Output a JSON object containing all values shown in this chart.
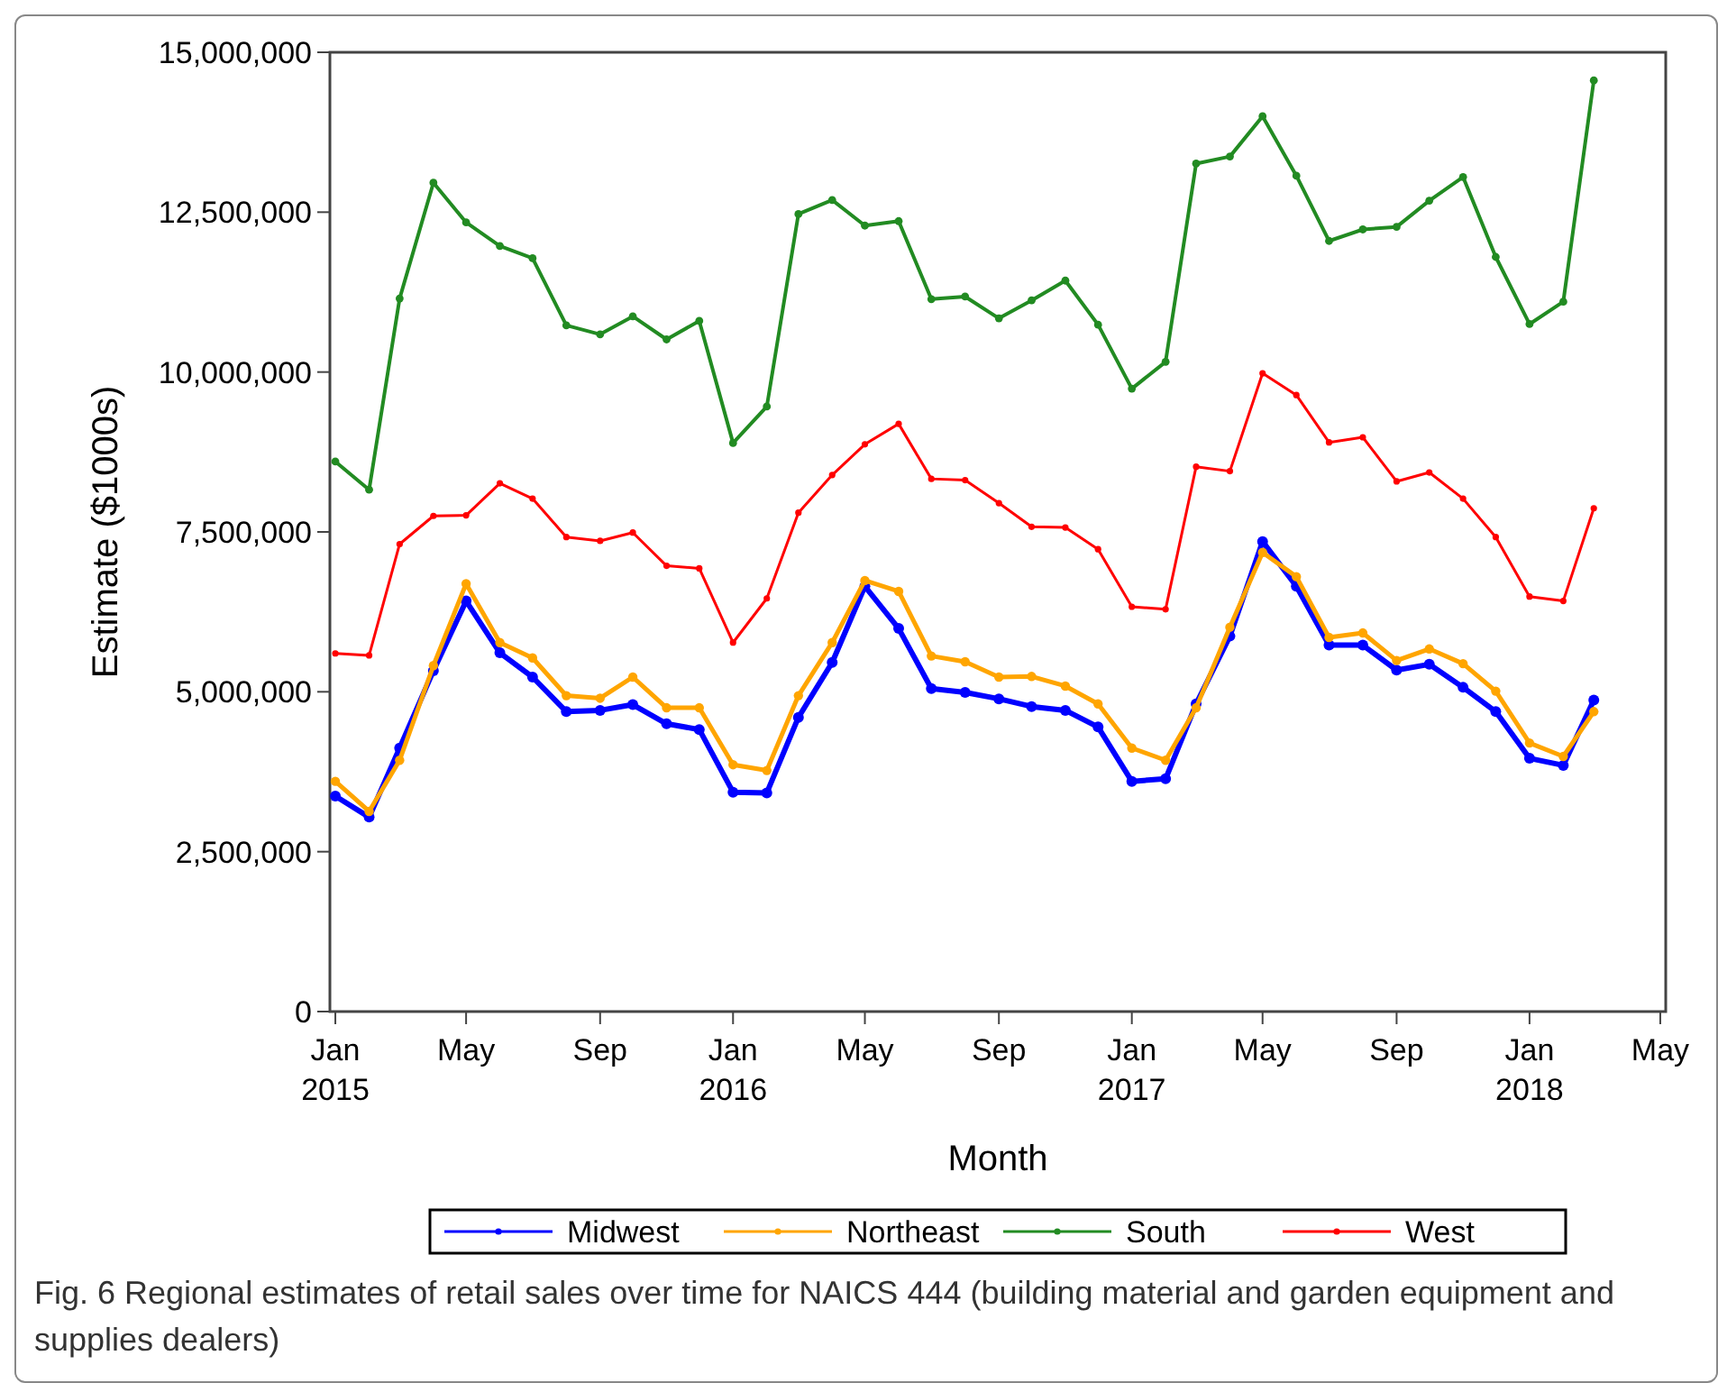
{
  "chart_data": {
    "type": "line",
    "xlabel": "Month",
    "ylabel": "Estimate ($1000s)",
    "x": [
      "2015-01",
      "2015-02",
      "2015-03",
      "2015-04",
      "2015-05",
      "2015-06",
      "2015-07",
      "2015-08",
      "2015-09",
      "2015-10",
      "2015-11",
      "2015-12",
      "2016-01",
      "2016-02",
      "2016-03",
      "2016-04",
      "2016-05",
      "2016-06",
      "2016-07",
      "2016-08",
      "2016-09",
      "2016-10",
      "2016-11",
      "2016-12",
      "2017-01",
      "2017-02",
      "2017-03",
      "2017-04",
      "2017-05",
      "2017-06",
      "2017-07",
      "2017-08",
      "2017-09",
      "2017-10",
      "2017-11",
      "2017-12",
      "2018-01",
      "2018-02",
      "2018-03"
    ],
    "series": [
      {
        "name": "Midwest",
        "color": "#0000ff",
        "values": [
          3370000,
          3040000,
          4120000,
          5330000,
          6420000,
          5610000,
          5230000,
          4690000,
          4710000,
          4800000,
          4500000,
          4410000,
          3430000,
          3420000,
          4600000,
          5460000,
          6650000,
          5990000,
          5050000,
          4990000,
          4890000,
          4770000,
          4710000,
          4450000,
          3600000,
          3640000,
          4810000,
          5870000,
          7350000,
          6650000,
          5730000,
          5730000,
          5340000,
          5430000,
          5070000,
          4690000,
          3960000,
          3850000,
          4870000
        ]
      },
      {
        "name": "Northeast",
        "color": "#ffa500",
        "values": [
          3600000,
          3130000,
          3930000,
          5410000,
          6690000,
          5770000,
          5530000,
          4940000,
          4900000,
          5230000,
          4750000,
          4750000,
          3860000,
          3770000,
          4940000,
          5770000,
          6740000,
          6570000,
          5560000,
          5470000,
          5230000,
          5240000,
          5090000,
          4810000,
          4120000,
          3930000,
          4750000,
          6010000,
          7180000,
          6800000,
          5850000,
          5920000,
          5490000,
          5670000,
          5440000,
          5010000,
          4200000,
          3990000,
          4690000
        ]
      },
      {
        "name": "South",
        "color": "#228b22",
        "values": [
          8600000,
          8160000,
          11150000,
          12960000,
          12340000,
          11970000,
          11780000,
          10730000,
          10590000,
          10870000,
          10510000,
          10800000,
          8890000,
          9460000,
          12470000,
          12690000,
          12290000,
          12360000,
          11140000,
          11180000,
          10840000,
          11120000,
          11430000,
          10740000,
          9740000,
          10160000,
          13260000,
          13370000,
          14000000,
          13070000,
          12050000,
          12230000,
          12270000,
          12680000,
          13050000,
          11800000,
          10750000,
          11100000,
          14560000
        ]
      },
      {
        "name": "West",
        "color": "#ff0000",
        "values": [
          5600000,
          5570000,
          7310000,
          7750000,
          7760000,
          8260000,
          8020000,
          7420000,
          7360000,
          7490000,
          6970000,
          6930000,
          5770000,
          6460000,
          7800000,
          8390000,
          8870000,
          9190000,
          8330000,
          8310000,
          7950000,
          7580000,
          7570000,
          7230000,
          6330000,
          6290000,
          8520000,
          8450000,
          9980000,
          9640000,
          8900000,
          8980000,
          8290000,
          8430000,
          8020000,
          7420000,
          6490000,
          6420000,
          7870000
        ]
      }
    ],
    "xlim": [
      "2014-12-27",
      "2018-05-06"
    ],
    "xticks": [
      {
        "value": "2015-01",
        "label": "Jan 2015"
      },
      {
        "value": "2015-05",
        "label": "May"
      },
      {
        "value": "2015-09",
        "label": "Sep"
      },
      {
        "value": "2016-01",
        "label": "Jan 2016"
      },
      {
        "value": "2016-05",
        "label": "May"
      },
      {
        "value": "2016-09",
        "label": "Sep"
      },
      {
        "value": "2017-01",
        "label": "Jan 2017"
      },
      {
        "value": "2017-05",
        "label": "May"
      },
      {
        "value": "2017-09",
        "label": "Sep"
      },
      {
        "value": "2018-01",
        "label": "Jan 2018"
      },
      {
        "value": "2018-05",
        "label": "May"
      }
    ],
    "ylim": [
      0,
      15000000
    ],
    "yticks": [
      {
        "value": 0,
        "label": "0"
      },
      {
        "value": 2500000,
        "label": "2,500,000"
      },
      {
        "value": 5000000,
        "label": "5,000,000"
      },
      {
        "value": 7500000,
        "label": "7,500,000"
      },
      {
        "value": 10000000,
        "label": "10,000,000"
      },
      {
        "value": 12500000,
        "label": "12,500,000"
      },
      {
        "value": 15000000,
        "label": "15,000,000"
      }
    ],
    "grid": false,
    "legend": "bottom",
    "marker": "circle",
    "line_style": "solid",
    "annotations": [
      "Fig. 6  Regional estimates of retail sales over time for NAICS 444 (building material and garden equipment and supplies dealers)"
    ]
  }
}
